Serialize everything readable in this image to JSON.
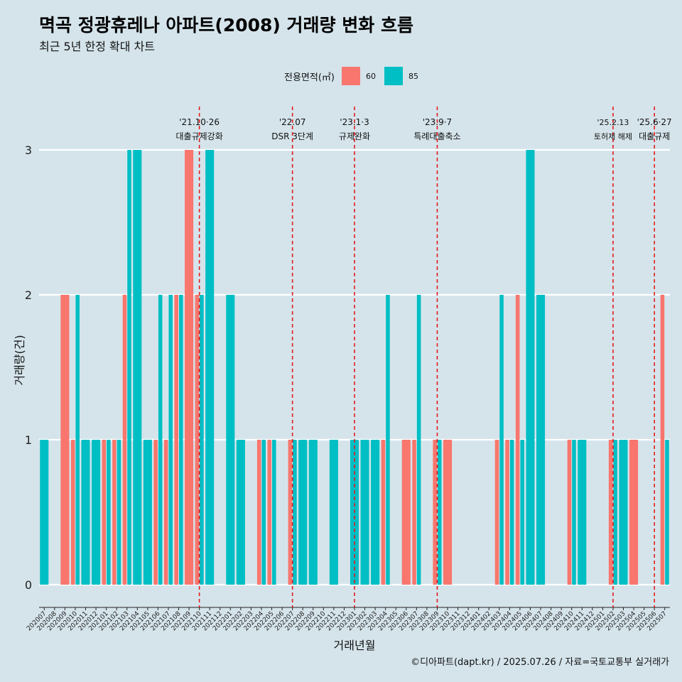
{
  "title": "멱곡 정광휴레나 아파트(2008) 거래량 변화 흐름",
  "subtitle": "최근 5년 한정 확대 차트",
  "caption": "©디아파트(dapt.kr) / 2025.07.26 / 자료=국토교통부 실거래가",
  "legend": {
    "title": "전용면적(㎡)",
    "items": [
      {
        "label": "60",
        "color": "#f8766d"
      },
      {
        "label": "85",
        "color": "#00bfc4"
      }
    ]
  },
  "chart_data": {
    "type": "bar",
    "xlabel": "거래년월",
    "ylabel": "거래량(건)",
    "ylim": [
      0,
      3
    ],
    "yticks": [
      0,
      1,
      2,
      3
    ],
    "grid": true,
    "legend_position": "top",
    "bar_mode": "dodge",
    "categories": [
      "202007",
      "202008",
      "202009",
      "202010",
      "202011",
      "202012",
      "202101",
      "202102",
      "202103",
      "202104",
      "202105",
      "202106",
      "202107",
      "202108",
      "202109",
      "202110",
      "202111",
      "202112",
      "202201",
      "202202",
      "202203",
      "202204",
      "202205",
      "202206",
      "202207",
      "202208",
      "202209",
      "202210",
      "202211",
      "202212",
      "202301",
      "202302",
      "202303",
      "202304",
      "202305",
      "202306",
      "202307",
      "202308",
      "202309",
      "202310",
      "202311",
      "202312",
      "202401",
      "202402",
      "202403",
      "202404",
      "202405",
      "202406",
      "202407",
      "202408",
      "202409",
      "202410",
      "202411",
      "202412",
      "202501",
      "202502",
      "202503",
      "202504",
      "202505",
      "202506",
      "202507"
    ],
    "series": [
      {
        "name": "60",
        "color": "#f8766d",
        "values": [
          0,
          0,
          2,
          1,
          0,
          0,
          1,
          1,
          2,
          0,
          0,
          1,
          1,
          2,
          3,
          2,
          0,
          0,
          0,
          0,
          0,
          1,
          1,
          0,
          1,
          0,
          0,
          0,
          0,
          0,
          0,
          0,
          0,
          1,
          0,
          1,
          1,
          0,
          1,
          1,
          0,
          0,
          0,
          0,
          1,
          1,
          2,
          0,
          0,
          0,
          0,
          1,
          0,
          0,
          0,
          1,
          0,
          1,
          0,
          0,
          2
        ]
      },
      {
        "name": "85",
        "color": "#00bfc4",
        "values": [
          1,
          0,
          0,
          2,
          1,
          1,
          1,
          1,
          3,
          3,
          1,
          2,
          2,
          2,
          0,
          2,
          3,
          0,
          2,
          1,
          0,
          1,
          1,
          0,
          1,
          1,
          1,
          0,
          1,
          0,
          1,
          1,
          1,
          2,
          0,
          0,
          2,
          0,
          1,
          0,
          0,
          0,
          0,
          0,
          2,
          1,
          1,
          3,
          2,
          0,
          0,
          1,
          1,
          0,
          0,
          1,
          1,
          0,
          0,
          0,
          1
        ]
      }
    ],
    "events": [
      {
        "month": "202110",
        "date": "'21.10·26",
        "label": "대출규제강화"
      },
      {
        "month": "202207",
        "date": "'22.07",
        "label": "DSR 3단계"
      },
      {
        "month": "202301",
        "date": "'23.1·3",
        "label": "규제완화"
      },
      {
        "month": "202309",
        "date": "'23.9·7",
        "label": "특례대출축소"
      },
      {
        "month": "202502",
        "date": "'25.2.13",
        "label": "토허제 해제"
      },
      {
        "month": "202506",
        "date": "'25.6·27",
        "label": "대출규제"
      }
    ],
    "event_line_color": "#e41a1c"
  }
}
